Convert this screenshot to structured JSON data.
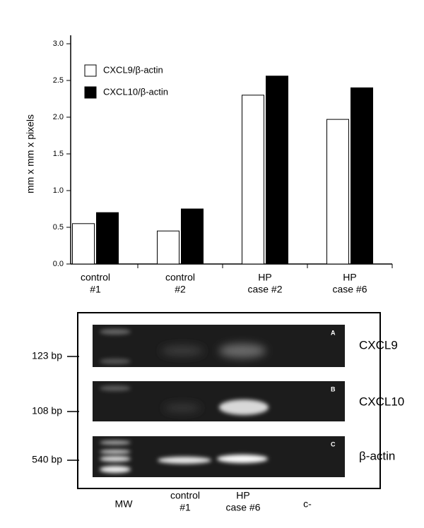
{
  "chart_data": {
    "type": "bar",
    "y_label": "mm x mm x pixels",
    "categories": [
      [
        "control",
        "#1"
      ],
      [
        "control",
        "#2"
      ],
      [
        "HP",
        "case #2"
      ],
      [
        "HP",
        "case #6"
      ]
    ],
    "series": [
      {
        "name": "CXCL9/β-actin",
        "color": "#ffffff",
        "values": [
          0.55,
          0.45,
          2.3,
          1.97
        ]
      },
      {
        "name": "CXCL10/β-actin",
        "color": "#000000",
        "values": [
          0.7,
          0.75,
          2.56,
          2.4
        ]
      }
    ],
    "ylim": [
      0,
      3
    ],
    "yticks": [
      {
        "value": 0,
        "label": "0.0"
      },
      0.5,
      {
        "value": 1,
        "label": "1.0"
      },
      1.5,
      {
        "value": 2,
        "label": "2.0"
      },
      2.5,
      {
        "value": 3,
        "label": "3.0"
      }
    ]
  },
  "gel": {
    "panels": [
      {
        "letter": "A",
        "gene": "CXCL9",
        "marker": "123 bp"
      },
      {
        "letter": "B",
        "gene": "CXCL10",
        "marker": "108 bp"
      },
      {
        "letter": "C",
        "gene": "β-actin",
        "marker": "540 bp"
      }
    ],
    "lanes": [
      [
        "MW"
      ],
      [
        "control",
        "#1"
      ],
      [
        "HP",
        "case #6"
      ],
      [
        "c-"
      ]
    ]
  }
}
